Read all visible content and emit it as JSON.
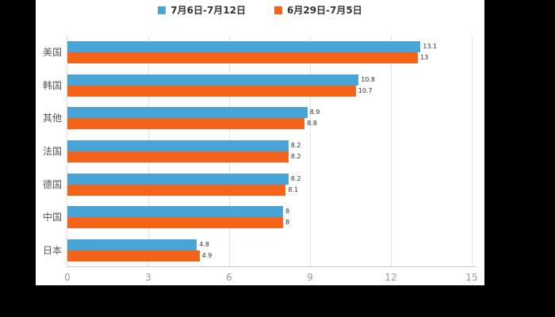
{
  "chart_data": {
    "type": "bar",
    "orientation": "horizontal",
    "title": "",
    "categories": [
      "美国",
      "韩国",
      "其他",
      "法国",
      "德国",
      "中国",
      "日本"
    ],
    "series": [
      {
        "name": "7月6日-7月12日",
        "color": "#49A5D7",
        "values": [
          13.1,
          10.8,
          8.9,
          8.2,
          8.2,
          8.0,
          4.8
        ]
      },
      {
        "name": "6月29日-7月5日",
        "color": "#F3641A",
        "values": [
          13.0,
          10.7,
          8.8,
          8.2,
          8.1,
          8.0,
          4.9
        ]
      }
    ],
    "x_ticks": [
      0,
      3,
      6,
      9,
      12,
      15
    ],
    "xlim": [
      0,
      15.2
    ],
    "xlabel": "",
    "ylabel": "",
    "grid": true,
    "legend_position": "top",
    "value_labels_shown": true
  },
  "colors": {
    "page_background": "#000000",
    "chart_background": "#FFFFFF",
    "gridline": "#E3E3E3",
    "axis_line": "#CCCCCC",
    "tick_label": "#999999",
    "category_label": "#555555",
    "legend_label": "#333333",
    "value_label": "#333333"
  }
}
